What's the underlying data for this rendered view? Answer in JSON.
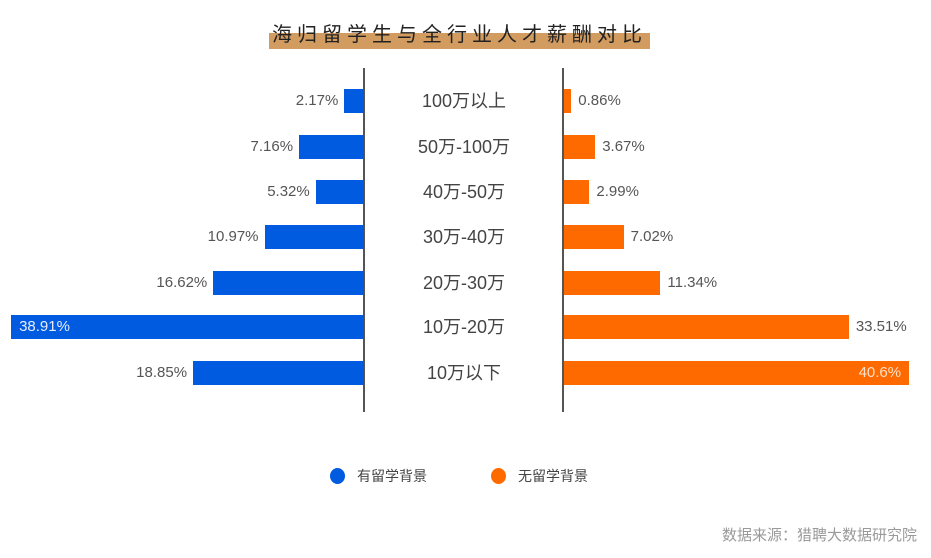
{
  "title": "海归留学生与全行业人才薪酬对比",
  "legend": [
    {
      "label": "有留学背景",
      "color": "#005be0"
    },
    {
      "label": "无留学背景",
      "color": "#ff6a00"
    }
  ],
  "source": "数据来源：猎聘大数据研究院",
  "rows": [
    {
      "category": "100万以上",
      "left": "2.17%",
      "right": "0.86%"
    },
    {
      "category": "50万-100万",
      "left": "7.16%",
      "right": "3.67%"
    },
    {
      "category": "40万-50万",
      "left": "5.32%",
      "right": "2.99%"
    },
    {
      "category": "30万-40万",
      "left": "10.97%",
      "right": "7.02%"
    },
    {
      "category": "20万-30万",
      "left": "16.62%",
      "right": "11.34%"
    },
    {
      "category": "10万-20万",
      "left": "38.91%",
      "right": "33.51%"
    },
    {
      "category": "10万以下",
      "left": "18.85%",
      "right": "40.6%"
    }
  ],
  "chart_data": {
    "type": "bar",
    "orientation": "horizontal-butterfly",
    "title": "海归留学生与全行业人才薪酬对比",
    "categories": [
      "100万以上",
      "50万-100万",
      "40万-50万",
      "30万-40万",
      "20万-30万",
      "10万-20万",
      "10万以下"
    ],
    "series": [
      {
        "name": "有留学背景",
        "color": "#005be0",
        "side": "left",
        "values": [
          2.17,
          7.16,
          5.32,
          10.97,
          16.62,
          38.91,
          18.85
        ]
      },
      {
        "name": "无留学背景",
        "color": "#ff6a00",
        "side": "right",
        "values": [
          0.86,
          3.67,
          2.99,
          7.02,
          11.34,
          33.51,
          40.6
        ]
      }
    ],
    "unit": "%",
    "xlabel": "",
    "ylabel": "",
    "grid": false,
    "legend_position": "bottom",
    "annotation": "数据来源：猎聘大数据研究院"
  }
}
